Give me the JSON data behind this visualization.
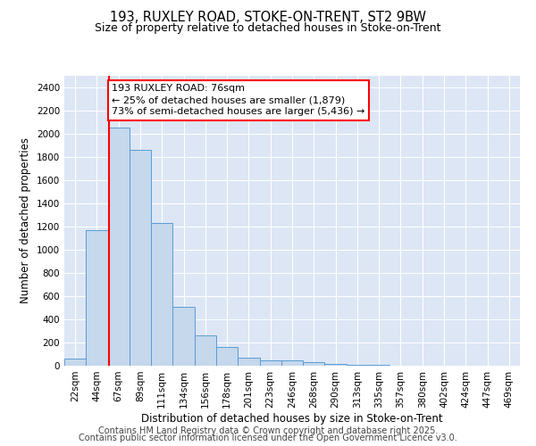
{
  "title1": "193, RUXLEY ROAD, STOKE-ON-TRENT, ST2 9BW",
  "title2": "Size of property relative to detached houses in Stoke-on-Trent",
  "xlabel": "Distribution of detached houses by size in Stoke-on-Trent",
  "ylabel": "Number of detached properties",
  "categories": [
    "22sqm",
    "44sqm",
    "67sqm",
    "89sqm",
    "111sqm",
    "134sqm",
    "156sqm",
    "178sqm",
    "201sqm",
    "223sqm",
    "246sqm",
    "268sqm",
    "290sqm",
    "313sqm",
    "335sqm",
    "357sqm",
    "380sqm",
    "402sqm",
    "424sqm",
    "447sqm",
    "469sqm"
  ],
  "values": [
    60,
    1170,
    2050,
    1860,
    1230,
    510,
    260,
    160,
    70,
    45,
    45,
    30,
    15,
    5,
    5,
    3,
    2,
    2,
    0,
    0,
    0
  ],
  "bar_color": "#c5d8ec",
  "bar_edge_color": "#5b9bd5",
  "bg_color": "#dce6f5",
  "annotation_text": "193 RUXLEY ROAD: 76sqm\n← 25% of detached houses are smaller (1,879)\n73% of semi-detached houses are larger (5,436) →",
  "vline_x_idx": 1.55,
  "vline_color": "red",
  "ylim": [
    0,
    2500
  ],
  "yticks": [
    0,
    200,
    400,
    600,
    800,
    1000,
    1200,
    1400,
    1600,
    1800,
    2000,
    2200,
    2400
  ],
  "footer1": "Contains HM Land Registry data © Crown copyright and database right 2025.",
  "footer2": "Contains public sector information licensed under the Open Government Licence v3.0.",
  "title_fontsize": 10.5,
  "subtitle_fontsize": 9,
  "axis_label_fontsize": 8.5,
  "tick_fontsize": 7.5,
  "annotation_fontsize": 8,
  "footer_fontsize": 7
}
